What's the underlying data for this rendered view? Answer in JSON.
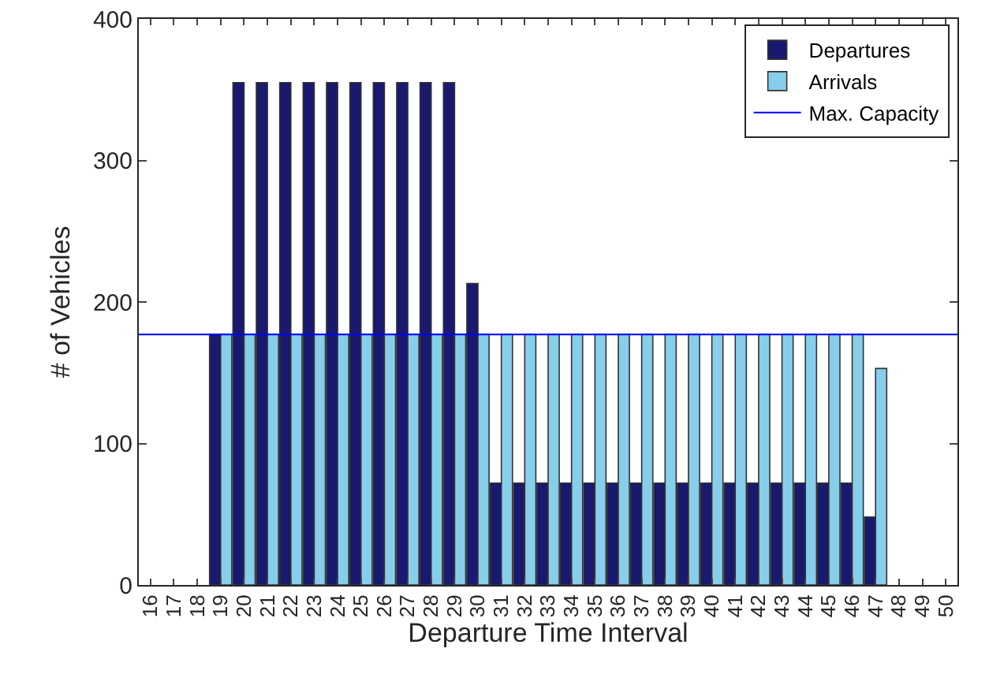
{
  "chart_data": {
    "type": "bar",
    "xlabel": "Departure Time Interval",
    "ylabel": "# of Vehicles",
    "categories": [
      "16",
      "17",
      "18",
      "19",
      "20",
      "21",
      "22",
      "23",
      "24",
      "25",
      "26",
      "27",
      "28",
      "29",
      "30",
      "31",
      "32",
      "33",
      "34",
      "35",
      "36",
      "37",
      "38",
      "39",
      "40",
      "41",
      "42",
      "43",
      "44",
      "45",
      "46",
      "47",
      "48",
      "49",
      "50"
    ],
    "series": [
      {
        "name": "Departures",
        "color": "#191970",
        "values": [
          null,
          null,
          null,
          177,
          355,
          355,
          355,
          355,
          355,
          355,
          355,
          355,
          355,
          355,
          213,
          72,
          72,
          72,
          72,
          72,
          72,
          72,
          72,
          72,
          72,
          72,
          72,
          72,
          72,
          72,
          72,
          48,
          null,
          null,
          null
        ]
      },
      {
        "name": "Arrivals",
        "color": "#87ceeb",
        "values": [
          null,
          null,
          null,
          177,
          177,
          177,
          177,
          177,
          177,
          177,
          177,
          177,
          177,
          177,
          177,
          177,
          177,
          177,
          177,
          177,
          177,
          177,
          177,
          177,
          177,
          177,
          177,
          177,
          177,
          177,
          177,
          153,
          null,
          null,
          null
        ]
      }
    ],
    "ref_lines": [
      {
        "axis": "y",
        "value": 177,
        "label": "Max. Capacity",
        "color": "#0000ff"
      }
    ],
    "ylim": [
      0,
      400
    ],
    "yticks": [
      0,
      100,
      200,
      300,
      400
    ],
    "grid": false,
    "legend": "top right"
  }
}
